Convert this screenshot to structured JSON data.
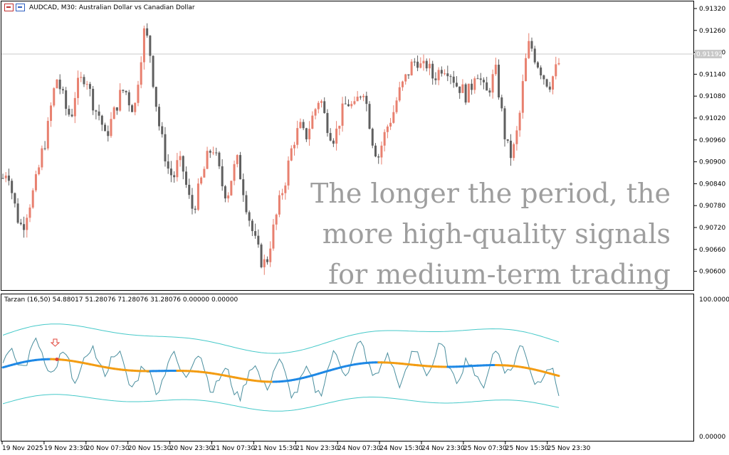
{
  "chart": {
    "symbol_label": "AUDCAD, M30:  Australian Dollar vs Canadian  Dollar",
    "current_price": "0.91192",
    "price_axis": [
      "0.91320",
      "0.91260",
      "0.91200",
      "0.91140",
      "0.91080",
      "0.91020",
      "0.90960",
      "0.90900",
      "0.90840",
      "0.90780",
      "0.90720",
      "0.90660",
      "0.90600"
    ],
    "overlay_text": [
      "The longer the period, the",
      "more high-quality signals",
      "for medium-term trading"
    ],
    "indicator_label": "Tarzan (16,50) 54.88017 51.28076 71.28076 31.28076 0.00000 0.00000",
    "indicator_axis": {
      "top": "100.00000",
      "bottom": "0.00000"
    },
    "time_axis": [
      "19 Nov 2025",
      "19 Nov 23:30",
      "20 Nov 07:30",
      "20 Nov 15:30",
      "20 Nov 23:30",
      "21 Nov 07:30",
      "21 Nov 15:30",
      "21 Nov 23:30",
      "24 Nov 07:30",
      "24 Nov 15:30",
      "24 Nov 23:30",
      "25 Nov 07:30",
      "25 Nov 15:30",
      "25 Nov 23:30"
    ],
    "colors": {
      "bull": "#e8806f",
      "bear": "#5f5f5f",
      "band": "#46c9c9",
      "rsi": "#4a8e9e",
      "ma_up": "#1e88e5",
      "ma_down": "#f39c12",
      "signal": "#e0453a",
      "grid": "#c8c8c8"
    }
  },
  "chart_data": {
    "type": "candlestick",
    "title": "AUDCAD, M30:  Australian Dollar vs Canadian  Dollar",
    "ylim": [
      0.9057,
      0.9135
    ],
    "closes": [
      0.9087,
      0.909,
      0.9082,
      0.9076,
      0.9073,
      0.9078,
      0.9082,
      0.9087,
      0.9094,
      0.9099,
      0.9108,
      0.9115,
      0.9111,
      0.9106,
      0.9104,
      0.9112,
      0.9114,
      0.9116,
      0.911,
      0.9106,
      0.9104,
      0.9098,
      0.9102,
      0.9106,
      0.911,
      0.9112,
      0.9108,
      0.9106,
      0.9118,
      0.9128,
      0.9124,
      0.9112,
      0.9102,
      0.9095,
      0.9089,
      0.9087,
      0.9092,
      0.9089,
      0.9082,
      0.9078,
      0.9083,
      0.9088,
      0.9093,
      0.9096,
      0.9091,
      0.9085,
      0.9082,
      0.9088,
      0.9092,
      0.9086,
      0.9079,
      0.9073,
      0.9068,
      0.9064,
      0.9063,
      0.907,
      0.9076,
      0.9082,
      0.9087,
      0.9094,
      0.9099,
      0.9101,
      0.9098,
      0.9102,
      0.9106,
      0.911,
      0.9104,
      0.91,
      0.9098,
      0.9103,
      0.9107,
      0.9108,
      0.9106,
      0.911,
      0.9112,
      0.9104,
      0.9096,
      0.9093,
      0.9098,
      0.9102,
      0.9105,
      0.911,
      0.9113,
      0.9116,
      0.9119,
      0.912,
      0.9117,
      0.9119,
      0.9115,
      0.9116,
      0.9118,
      0.9118,
      0.9116,
      0.9113,
      0.9112,
      0.911,
      0.9112,
      0.9118,
      0.9114,
      0.911,
      0.9113,
      0.9117,
      0.9108,
      0.9098,
      0.9093,
      0.9096,
      0.9105,
      0.9118,
      0.9125,
      0.9121,
      0.9118,
      0.9115,
      0.9113,
      0.9116,
      0.9119
    ]
  }
}
